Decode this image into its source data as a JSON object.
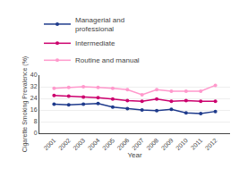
{
  "chart_data": {
    "type": "line",
    "x": [
      2001,
      2002,
      2003,
      2004,
      2005,
      2006,
      2007,
      2008,
      2009,
      2010,
      2011,
      2012
    ],
    "series": [
      {
        "name": "Managerial and\nprofessional",
        "color": "#1f3b8c",
        "values": [
          20,
          19.5,
          20,
          20.5,
          18,
          17,
          16,
          15.5,
          16.5,
          14,
          13.5,
          15
        ]
      },
      {
        "name": "Intermediate",
        "color": "#cc006e",
        "values": [
          26,
          25.5,
          25,
          24.5,
          23.5,
          22.5,
          22,
          23.5,
          22,
          22.5,
          22,
          22
        ]
      },
      {
        "name": "Routine and manual",
        "color": "#ff99cc",
        "values": [
          31,
          31.5,
          32,
          31.5,
          31,
          30,
          26.5,
          30,
          29,
          29,
          29,
          33
        ]
      }
    ],
    "xlabel": "Year",
    "ylabel": "Cigarette Smoking Prevalence (%)",
    "xlim": [
      2000,
      2013
    ],
    "xticks": [
      2001,
      2002,
      2003,
      2004,
      2005,
      2006,
      2007,
      2008,
      2009,
      2010,
      2011,
      2012
    ],
    "ylim": [
      0,
      40
    ],
    "yticks": [
      0,
      8,
      16,
      24,
      32,
      40
    ],
    "grid": true,
    "legend": "upper left",
    "marker": "circle",
    "line_style": "solid"
  }
}
